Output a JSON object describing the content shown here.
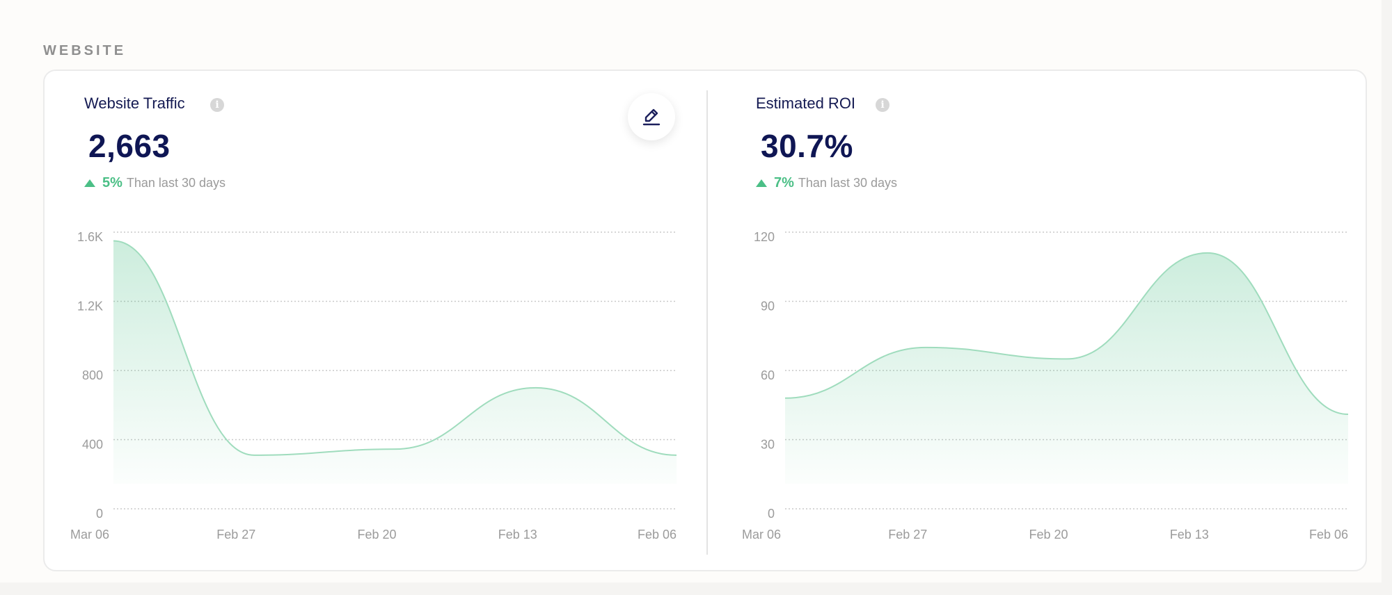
{
  "section": {
    "title": "WEBSITE"
  },
  "panels": [
    {
      "title": "Website Traffic",
      "value": "2,663",
      "change_pct": "5%",
      "change_text": "Than last 30 days",
      "info_icon": "info-icon",
      "chart_data": {
        "type": "area",
        "x": [
          "Mar 06",
          "Feb 27",
          "Feb 20",
          "Feb 13",
          "Feb 06"
        ],
        "y_ticks": [
          "0",
          "400",
          "800",
          "1.2K",
          "1.6K"
        ],
        "ylim": [
          0,
          1600
        ],
        "series": [
          {
            "points": [
              [
                0,
                1550
              ],
              [
                1,
                310
              ],
              [
                2,
                345
              ],
              [
                3,
                700
              ],
              [
                4,
                310
              ]
            ]
          }
        ],
        "grid": true,
        "color": "#4bbf86"
      }
    },
    {
      "title": "Estimated ROI",
      "value": "30.7%",
      "change_pct": "7%",
      "change_text": "Than last 30 days",
      "info_icon": "info-icon",
      "chart_data": {
        "type": "area",
        "x": [
          "Mar 06",
          "Feb 27",
          "Feb 20",
          "Feb 13",
          "Feb 06"
        ],
        "y_ticks": [
          "0",
          "30",
          "60",
          "90",
          "120"
        ],
        "ylim": [
          0,
          120
        ],
        "series": [
          {
            "points": [
              [
                0,
                48
              ],
              [
                1,
                70
              ],
              [
                2,
                65
              ],
              [
                3,
                111
              ],
              [
                4,
                41
              ]
            ]
          }
        ],
        "grid": true,
        "color": "#4bbf86"
      }
    }
  ],
  "edit_button": {
    "icon": "pencil-icon"
  }
}
